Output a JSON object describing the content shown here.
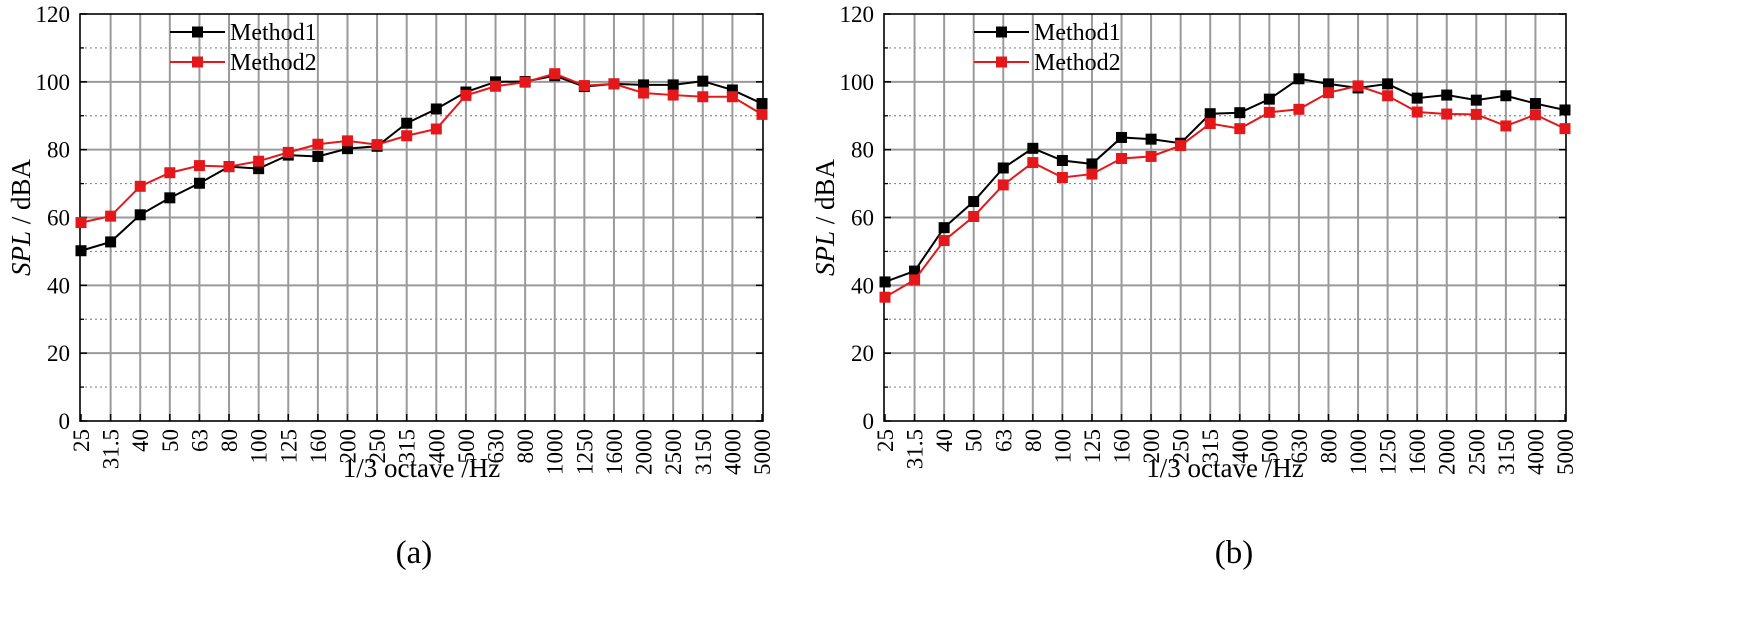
{
  "chart_data": [
    {
      "type": "line",
      "panel_label": "(a)",
      "xlabel": "1/3 octave /Hz",
      "ylabel_italic": "SPL",
      "ylabel_rest": " / dBA",
      "ylim": [
        0,
        120
      ],
      "yticks": [
        "0",
        "20",
        "40",
        "60",
        "80",
        "100",
        "120"
      ],
      "grid": true,
      "legend_position": "top-left",
      "categories": [
        "25",
        "31.5",
        "40",
        "50",
        "63",
        "80",
        "100",
        "125",
        "160",
        "200",
        "250",
        "315",
        "400",
        "500",
        "630",
        "800",
        "1000",
        "1250",
        "1600",
        "2000",
        "2500",
        "3150",
        "4000",
        "5000"
      ],
      "series": [
        {
          "name": "Method1",
          "color": "#000000",
          "values": [
            50.2,
            52.8,
            60.8,
            65.8,
            70.1,
            75.0,
            74.4,
            78.4,
            78.0,
            80.3,
            81.0,
            87.8,
            92.0,
            97.0,
            100.0,
            100.1,
            101.8,
            98.6,
            99.4,
            99.1,
            99.1,
            100.2,
            97.6,
            93.6
          ]
        },
        {
          "name": "Method2",
          "color": "#e4181b",
          "values": [
            58.5,
            60.4,
            69.2,
            73.2,
            75.3,
            75.0,
            76.6,
            79.2,
            81.6,
            82.6,
            81.5,
            84.1,
            86.1,
            96.0,
            98.7,
            99.9,
            102.4,
            98.9,
            99.4,
            96.7,
            96.1,
            95.6,
            95.6,
            90.4
          ]
        }
      ]
    },
    {
      "type": "line",
      "panel_label": "(b)",
      "xlabel": "1/3 octave /Hz",
      "ylabel_italic": "SPL",
      "ylabel_rest": " / dBA",
      "ylim": [
        0,
        120
      ],
      "yticks": [
        "0",
        "20",
        "40",
        "60",
        "80",
        "100",
        "120"
      ],
      "grid": true,
      "legend_position": "top-left",
      "categories": [
        "25",
        "31.5",
        "40",
        "50",
        "63",
        "80",
        "100",
        "125",
        "160",
        "200",
        "250",
        "315",
        "400",
        "500",
        "630",
        "800",
        "1000",
        "1250",
        "1600",
        "2000",
        "2500",
        "3150",
        "4000",
        "5000"
      ],
      "series": [
        {
          "name": "Method1",
          "color": "#000000",
          "values": [
            41.0,
            44.2,
            57.0,
            64.7,
            74.6,
            80.4,
            76.8,
            75.8,
            83.6,
            83.1,
            81.9,
            90.6,
            90.9,
            94.9,
            100.9,
            99.4,
            98.2,
            99.4,
            95.2,
            96.1,
            94.6,
            95.9,
            93.6,
            91.7
          ]
        },
        {
          "name": "Method2",
          "color": "#e4181b",
          "values": [
            36.5,
            41.6,
            53.2,
            60.3,
            69.6,
            76.2,
            71.8,
            72.8,
            77.4,
            78.0,
            81.2,
            87.7,
            86.2,
            91.0,
            91.9,
            96.8,
            98.8,
            95.9,
            91.1,
            90.5,
            90.4,
            87.0,
            90.3,
            86.2
          ]
        }
      ]
    }
  ]
}
